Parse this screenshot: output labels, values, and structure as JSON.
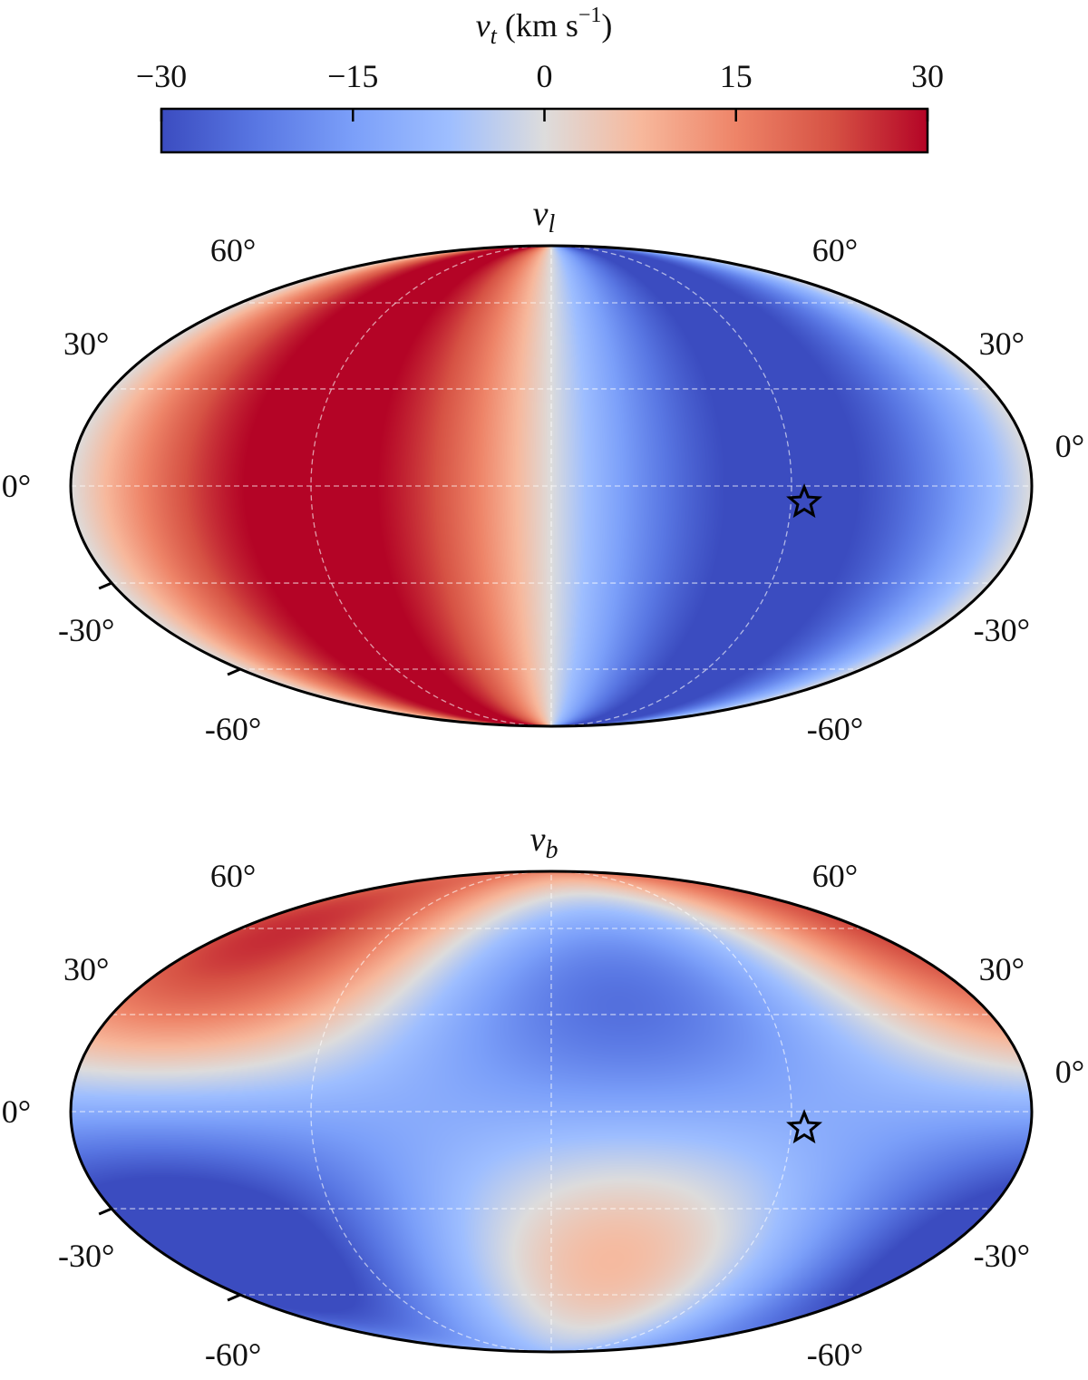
{
  "chart_data": [
    {
      "type": "heatmap",
      "projection": "mollweide",
      "title": "v_l",
      "title_main": "v",
      "title_sub": "l",
      "lat_tick_labels": [
        "60°",
        "30°",
        "0°",
        "-30°",
        "-60°"
      ],
      "lat_ticks": [
        60,
        30,
        0,
        -30,
        -60
      ],
      "color_range": [
        -30,
        30
      ],
      "grid": true,
      "marker": {
        "symbol": "star",
        "lon": 95,
        "lat": -5
      },
      "pattern": "vl"
    },
    {
      "type": "heatmap",
      "projection": "mollweide",
      "title": "v_b",
      "title_main": "v",
      "title_sub": "b",
      "lat_tick_labels": [
        "60°",
        "30°",
        "0°",
        "-30°",
        "-60°"
      ],
      "lat_ticks": [
        60,
        30,
        0,
        -30,
        -60
      ],
      "color_range": [
        -30,
        30
      ],
      "grid": true,
      "marker": {
        "symbol": "star",
        "lon": 95,
        "lat": -5
      },
      "pattern": "vb"
    }
  ],
  "colorbar": {
    "title_main": "v",
    "title_sub": "t",
    "title_units": " (km s",
    "title_exp": "−1",
    "title_close": ")",
    "ticks": [
      -30,
      -15,
      0,
      15,
      30
    ],
    "tick_labels": [
      "−30",
      "−15",
      "0",
      "15",
      "30"
    ],
    "colormap": "coolwarm",
    "range": [
      -30,
      30
    ]
  }
}
